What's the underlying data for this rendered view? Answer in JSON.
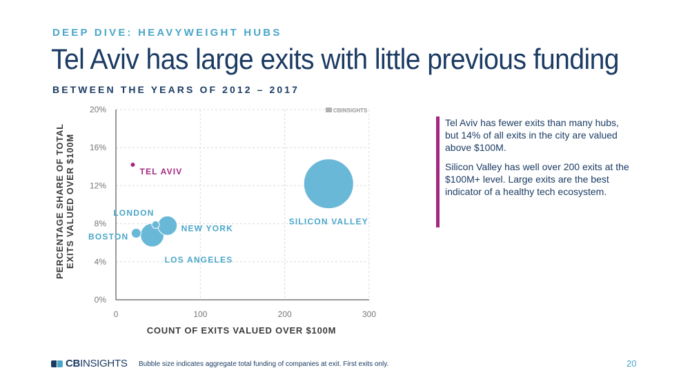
{
  "header": {
    "kicker": "DEEP DIVE: HEAVYWEIGHT HUBS",
    "title": "Tel Aviv has large exits with little previous funding",
    "subtitle": "BETWEEN THE YEARS OF 2012 – 2017"
  },
  "chart_data": {
    "type": "scatter",
    "subtype": "bubble",
    "xlabel": "COUNT OF EXITS VALUED OVER $100M",
    "ylabel": "PERCENTAGE SHARE OF TOTAL EXITS VALUED OVER $100M",
    "xlim": [
      0,
      300
    ],
    "ylim": [
      0,
      20
    ],
    "x_ticks": [
      0,
      100,
      200,
      300
    ],
    "y_ticks": [
      0,
      4,
      8,
      12,
      16,
      20
    ],
    "y_tick_labels": [
      "0%",
      "4%",
      "8%",
      "12%",
      "16%",
      "20%"
    ],
    "grid": true,
    "watermark": "CBINSIGHTS",
    "points": [
      {
        "label": "TEL AVIV",
        "x": 20,
        "y": 14.2,
        "size": 3.5,
        "color": "#a3277f"
      },
      {
        "label": "BOSTON",
        "x": 24,
        "y": 7.0,
        "size": 7,
        "color": "#6ab8d8"
      },
      {
        "label": "LOS ANGELES",
        "x": 43,
        "y": 6.8,
        "size": 17,
        "color": "#6ab8d8"
      },
      {
        "label": "LONDON",
        "x": 47,
        "y": 7.9,
        "size": 5.5,
        "color": "#6ab8d8"
      },
      {
        "label": "NEW YORK",
        "x": 61,
        "y": 7.8,
        "size": 14,
        "color": "#6ab8d8"
      },
      {
        "label": "SILICON VALLEY",
        "x": 252,
        "y": 12.2,
        "size": 36,
        "color": "#6ab8d8"
      }
    ]
  },
  "commentary": {
    "p1": "Tel Aviv has fewer exits than many hubs, but 14% of all exits in the city are valued above $100M.",
    "p2": "Silicon Valley has well over 200 exits at the $100M+ level. Large exits are the best indicator of a healthy tech ecosystem."
  },
  "footer": {
    "logo_cb": "CB",
    "logo_insights": "INSIGHTS",
    "note": "Bubble size indicates aggregate total funding of companies at exit. First exits only.",
    "page_number": "20"
  },
  "colors": {
    "navy": "#1b3b63",
    "accent_blue": "#4aa6c9",
    "bubble_blue": "#6ab8d8",
    "magenta": "#a3277f"
  }
}
